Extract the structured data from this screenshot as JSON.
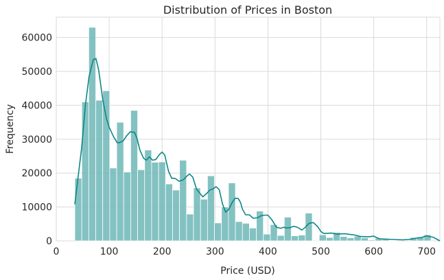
{
  "chart_data": {
    "type": "bar",
    "title": "Distribution of Prices in Boston",
    "xlabel": "Price (USD)",
    "ylabel": "Frequency",
    "xlim": [
      0,
      725
    ],
    "ylim": [
      0,
      66000
    ],
    "grid": true,
    "legend": "none",
    "xticks": [
      0,
      100,
      200,
      300,
      400,
      500,
      600,
      700
    ],
    "yticks": [
      0,
      10000,
      20000,
      30000,
      40000,
      50000,
      60000
    ],
    "bin_edges": [
      35,
      48.2,
      61.4,
      74.6,
      87.8,
      101,
      114.2,
      127.4,
      140.6,
      153.8,
      167,
      180.2,
      193.4,
      206.6,
      219.8,
      233,
      246.2,
      259.4,
      272.6,
      285.8,
      299,
      312.2,
      325.4,
      338.6,
      351.8,
      365,
      378.2,
      391.4,
      404.6,
      417.8,
      431,
      444.2,
      457.4,
      470.6,
      483.8,
      497,
      510.2,
      523.4,
      536.6,
      549.8,
      563,
      576.2,
      589.4,
      602.6,
      615.8,
      629,
      642.2,
      655.4,
      668.6,
      681.8,
      695,
      708.2,
      721.4
    ],
    "values": [
      18500,
      41000,
      63000,
      41500,
      44300,
      21500,
      35000,
      20300,
      38500,
      21000,
      26800,
      23200,
      23300,
      16800,
      15000,
      23800,
      7900,
      15600,
      12300,
      19200,
      5300,
      10000,
      17100,
      5700,
      5200,
      3800,
      8800,
      2000,
      4800,
      1600,
      7000,
      1500,
      1700,
      8200,
      200,
      1800,
      1000,
      2500,
      1300,
      900,
      1400,
      900,
      300,
      800,
      700,
      100,
      0,
      0,
      1000,
      1200,
      1800,
      0
    ],
    "kde_color": "#0f8585",
    "bar_color": "#6fb7b7",
    "kde": {
      "x": [
        35,
        48,
        55,
        62,
        70,
        75,
        80,
        88,
        95,
        100,
        108,
        115,
        120,
        127,
        133,
        140,
        148,
        153,
        158,
        165,
        170,
        176,
        182,
        188,
        195,
        200,
        205,
        212,
        218,
        225,
        232,
        240,
        248,
        252,
        258,
        265,
        270,
        277,
        285,
        290,
        296,
        302,
        308,
        314,
        320,
        326,
        332,
        338,
        344,
        348,
        352,
        358,
        365,
        372,
        380,
        388,
        395,
        400,
        408,
        416,
        424,
        430,
        436,
        442,
        448,
        454,
        458,
        464,
        470,
        478,
        486,
        494,
        500,
        505,
        512,
        520,
        530,
        545,
        555,
        565,
        575,
        590,
        600,
        605,
        612,
        625,
        640,
        655,
        670,
        680,
        690,
        700,
        705,
        712,
        718,
        725
      ],
      "y": [
        10800,
        27500,
        40000,
        48500,
        53500,
        53800,
        50500,
        41500,
        36000,
        33500,
        30800,
        29000,
        29000,
        29600,
        31000,
        32200,
        32000,
        30000,
        26800,
        24400,
        23800,
        24800,
        23800,
        24000,
        25500,
        26200,
        25300,
        20600,
        18500,
        18400,
        17600,
        18000,
        19300,
        19700,
        18800,
        15300,
        14300,
        13000,
        14100,
        15000,
        15300,
        16000,
        15100,
        11000,
        8500,
        9300,
        11200,
        12600,
        12500,
        11400,
        9300,
        7700,
        7700,
        6700,
        6800,
        7500,
        7600,
        7600,
        6100,
        4000,
        3700,
        4000,
        3800,
        3900,
        4300,
        4100,
        3800,
        3200,
        3900,
        5200,
        5400,
        4200,
        2800,
        2200,
        2200,
        2300,
        2000,
        2100,
        1900,
        1700,
        1300,
        1200,
        1400,
        1000,
        600,
        500,
        400,
        300,
        500,
        800,
        1000,
        1500,
        1300,
        1100,
        600,
        0
      ]
    }
  }
}
